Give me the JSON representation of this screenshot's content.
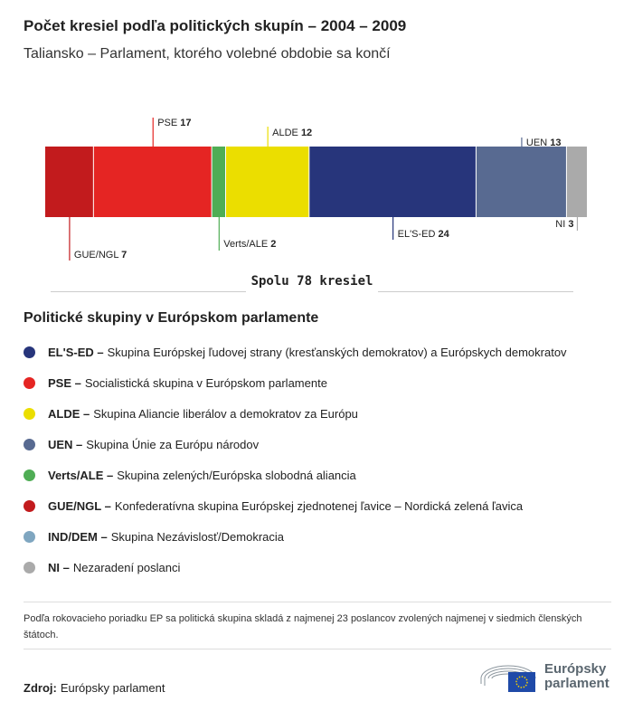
{
  "title": "Počet kresiel podľa politických skupín – 2004 – 2009",
  "subtitle": "Taliansko – Parlament, ktorého volebné obdobie sa končí",
  "chart_data": {
    "type": "bar",
    "stacked": true,
    "orientation": "horizontal",
    "categories": [
      "GUE/NGL",
      "PSE",
      "Verts/ALE",
      "ALDE",
      "EL'S-ED",
      "UEN",
      "NI"
    ],
    "values": [
      7,
      17,
      2,
      12,
      24,
      13,
      3
    ],
    "colors": [
      "#c21b1d",
      "#e52523",
      "#4fad55",
      "#ebde00",
      "#27357b",
      "#586a91",
      "#aaaaaa"
    ],
    "total_label": "Spolu 78 kresiel",
    "total": 78
  },
  "legend": {
    "title": "Politické skupiny v Európskom parlamente",
    "items": [
      {
        "abbr": "EL'S-ED –",
        "desc": "Skupina Európskej ľudovej strany (kresťanských demokratov) a Európskych demokratov",
        "color": "#27357b"
      },
      {
        "abbr": "PSE –",
        "desc": "Socialistická skupina v Európskom parlamente",
        "color": "#e52523"
      },
      {
        "abbr": "ALDE –",
        "desc": "Skupina Aliancie liberálov a demokratov za Európu",
        "color": "#ebde00"
      },
      {
        "abbr": "UEN –",
        "desc": "Skupina Únie za Európu národov",
        "color": "#586a91"
      },
      {
        "abbr": "Verts/ALE –",
        "desc": "Skupina zelených/Európska slobodná aliancia",
        "color": "#4fad55"
      },
      {
        "abbr": "GUE/NGL –",
        "desc": "Konfederatívna skupina Európskej zjednotenej ľavice – Nordická zelená ľavica",
        "color": "#c21b1d"
      },
      {
        "abbr": "IND/DEM –",
        "desc": "Skupina Nezávislosť/Demokracia",
        "color": "#7fa6c0"
      },
      {
        "abbr": "NI –",
        "desc": "Nezaradení poslanci",
        "color": "#aaaaaa"
      }
    ]
  },
  "note": "Podľa rokovacieho poriadku EP sa politická skupina skladá z najmenej 23 poslancov zvolených najmenej v siedmich členských štátoch.",
  "source": {
    "label": "Zdroj:",
    "value": "Európsky parlament"
  },
  "logo": {
    "line1": "Európsky",
    "line2": "parlament"
  }
}
